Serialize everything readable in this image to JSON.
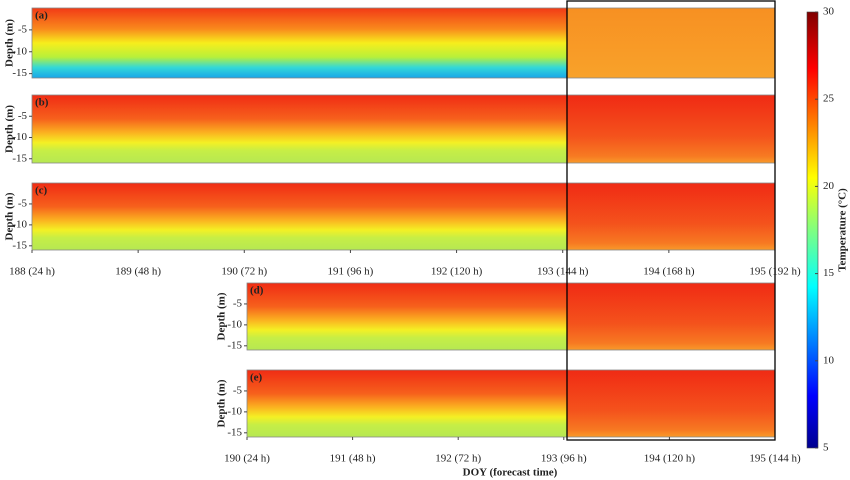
{
  "chart_data": [
    {
      "type": "heatmap",
      "label": "(a)",
      "ylabel": "Depth (m)",
      "xlim": [
        188,
        195
      ],
      "ylim": [
        -16,
        0
      ],
      "yticks": [
        -5,
        -10,
        -15
      ]
    },
    {
      "type": "heatmap",
      "label": "(b)",
      "ylabel": "Depth (m)",
      "xlim": [
        188,
        195
      ],
      "ylim": [
        -16,
        0
      ],
      "yticks": [
        -5,
        -10,
        -15
      ]
    },
    {
      "type": "heatmap",
      "label": "(c)",
      "ylabel": "Depth (m)",
      "xlim": [
        188,
        195
      ],
      "ylim": [
        -16,
        0
      ],
      "yticks": [
        -5,
        -10,
        -15
      ],
      "xticks": [
        {
          "value": 188,
          "label": "188 (24 h)"
        },
        {
          "value": 189,
          "label": "189 (48 h)"
        },
        {
          "value": 190,
          "label": "190 (72 h)"
        },
        {
          "value": 191,
          "label": "191 (96 h)"
        },
        {
          "value": 192,
          "label": "192 (120 h)"
        },
        {
          "value": 193,
          "label": "193 (144 h)"
        },
        {
          "value": 194,
          "label": "194 (168 h)"
        },
        {
          "value": 195,
          "label": "195 (192 h)"
        }
      ]
    },
    {
      "type": "heatmap",
      "label": "(d)",
      "ylabel": "Depth (m)",
      "xlim": [
        190,
        195
      ],
      "ylim": [
        -16,
        0
      ],
      "yticks": [
        -5,
        -10,
        -15
      ]
    },
    {
      "type": "heatmap",
      "label": "(e)",
      "ylabel": "Depth (m)",
      "xlabel": "DOY (forecast time)",
      "xlim": [
        190,
        195
      ],
      "ylim": [
        -16,
        0
      ],
      "yticks": [
        -5,
        -10,
        -15
      ],
      "xticks": [
        {
          "value": 190,
          "label": "190 (24 h)"
        },
        {
          "value": 191,
          "label": "191 (48 h)"
        },
        {
          "value": 192,
          "label": "192 (72 h)"
        },
        {
          "value": 193,
          "label": "193 (96 h)"
        },
        {
          "value": 194,
          "label": "194 (120 h)"
        },
        {
          "value": 195,
          "label": "195 (144 h)"
        }
      ]
    },
    {
      "type": "colorbar",
      "label": "Temperature (°C)",
      "ylim": [
        5,
        30
      ],
      "yticks": [
        5,
        10,
        15,
        20,
        25,
        30
      ]
    }
  ]
}
